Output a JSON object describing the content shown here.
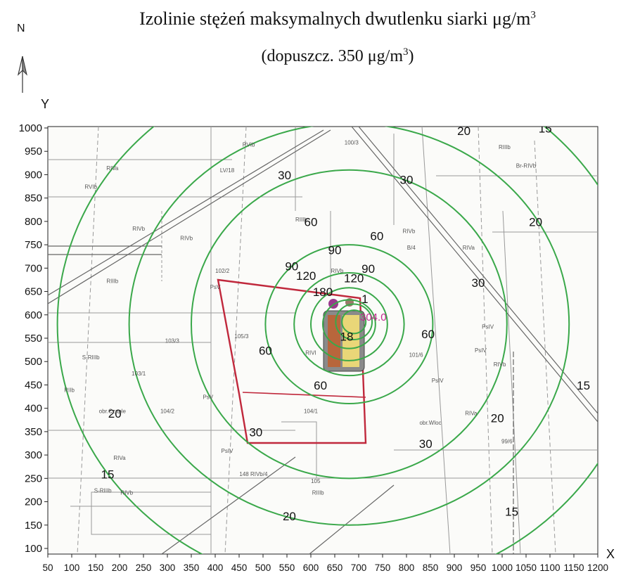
{
  "header": {
    "north": "N",
    "title_main": "Izolinie stężeń maksymalnych dwutlenku siarki μg/m",
    "title_sup": "3",
    "subtitle_main": "(dopuszcz. 350 μg/m",
    "subtitle_sup": "3",
    "subtitle_end": ")"
  },
  "axes": {
    "y_label": "Y",
    "x_label": "X",
    "y_ticks": [
      "1000",
      "950",
      "900",
      "850",
      "800",
      "750",
      "700",
      "650",
      "600",
      "550",
      "500",
      "450",
      "400",
      "350",
      "300",
      "250",
      "200",
      "150",
      "100"
    ],
    "x_ticks": [
      "50",
      "100",
      "150",
      "200",
      "250",
      "300",
      "350",
      "400",
      "450",
      "500",
      "550",
      "600",
      "650",
      "700",
      "750",
      "800",
      "850",
      "900",
      "950",
      "1000",
      "1050",
      "1100",
      "1150",
      "1200"
    ],
    "x_range": [
      50,
      1200
    ],
    "y_range": [
      100,
      1000
    ]
  },
  "map": {
    "center": [
      680,
      580
    ],
    "max_value": "304.0",
    "isolines": [
      {
        "value": "180"
      },
      {
        "value": "120"
      },
      {
        "value": "90"
      },
      {
        "value": "60"
      },
      {
        "value": "30"
      },
      {
        "value": "20"
      },
      {
        "value": "15"
      }
    ],
    "isoline_labels": [
      {
        "text": "180",
        "x": 625,
        "y": 640
      },
      {
        "text": "120",
        "x": 590,
        "y": 675
      },
      {
        "text": "120",
        "x": 690,
        "y": 670
      },
      {
        "text": "90",
        "x": 560,
        "y": 695
      },
      {
        "text": "90",
        "x": 650,
        "y": 730
      },
      {
        "text": "90",
        "x": 720,
        "y": 690
      },
      {
        "text": "60",
        "x": 600,
        "y": 790
      },
      {
        "text": "60",
        "x": 738,
        "y": 760
      },
      {
        "text": "60",
        "x": 845,
        "y": 550
      },
      {
        "text": "60",
        "x": 505,
        "y": 515
      },
      {
        "text": "60",
        "x": 620,
        "y": 440
      },
      {
        "text": "30",
        "x": 545,
        "y": 890
      },
      {
        "text": "30",
        "x": 800,
        "y": 880
      },
      {
        "text": "30",
        "x": 950,
        "y": 660
      },
      {
        "text": "30",
        "x": 840,
        "y": 315
      },
      {
        "text": "30",
        "x": 485,
        "y": 340
      },
      {
        "text": "20",
        "x": 920,
        "y": 985
      },
      {
        "text": "20",
        "x": 1070,
        "y": 790
      },
      {
        "text": "20",
        "x": 990,
        "y": 370
      },
      {
        "text": "20",
        "x": 190,
        "y": 380
      },
      {
        "text": "20",
        "x": 555,
        "y": 160
      },
      {
        "text": "15",
        "x": 1090,
        "y": 990
      },
      {
        "text": "15",
        "x": 1170,
        "y": 440
      },
      {
        "text": "15",
        "x": 175,
        "y": 250
      },
      {
        "text": "15",
        "x": 1020,
        "y": 170
      },
      {
        "text": "1",
        "x": 713,
        "y": 625
      },
      {
        "text": "18",
        "x": 675,
        "y": 545
      }
    ],
    "parcel_labels": [
      {
        "text": "RVIb",
        "x": 470,
        "y": 960
      },
      {
        "text": "100/3",
        "x": 685,
        "y": 965
      },
      {
        "text": "RIIIb",
        "x": 1005,
        "y": 955
      },
      {
        "text": "Br-RIVb",
        "x": 1050,
        "y": 915
      },
      {
        "text": "RIVa",
        "x": 185,
        "y": 910
      },
      {
        "text": "LV/18",
        "x": 425,
        "y": 905
      },
      {
        "text": "RVIb",
        "x": 140,
        "y": 870
      },
      {
        "text": "RIIIb",
        "x": 580,
        "y": 800
      },
      {
        "text": "RIVb",
        "x": 240,
        "y": 780
      },
      {
        "text": "RIVb",
        "x": 340,
        "y": 760
      },
      {
        "text": "RIVb",
        "x": 805,
        "y": 775
      },
      {
        "text": "B/4",
        "x": 810,
        "y": 740
      },
      {
        "text": "RIVa",
        "x": 930,
        "y": 740
      },
      {
        "text": "102/2",
        "x": 415,
        "y": 690
      },
      {
        "text": "PsV",
        "x": 400,
        "y": 655
      },
      {
        "text": "RIIIb",
        "x": 185,
        "y": 668
      },
      {
        "text": "RIVb",
        "x": 655,
        "y": 690
      },
      {
        "text": "103/3",
        "x": 310,
        "y": 540
      },
      {
        "text": "105/3",
        "x": 455,
        "y": 550
      },
      {
        "text": "RIVI",
        "x": 600,
        "y": 515
      },
      {
        "text": "101/6",
        "x": 820,
        "y": 510
      },
      {
        "text": "PsIV",
        "x": 970,
        "y": 570
      },
      {
        "text": "PsIV",
        "x": 955,
        "y": 520
      },
      {
        "text": "RIVb",
        "x": 995,
        "y": 490
      },
      {
        "text": "PsIV",
        "x": 865,
        "y": 455
      },
      {
        "text": "103/1",
        "x": 240,
        "y": 470
      },
      {
        "text": "S-RIIIb",
        "x": 140,
        "y": 505
      },
      {
        "text": "RIIb",
        "x": 95,
        "y": 435
      },
      {
        "text": "PsV",
        "x": 385,
        "y": 420
      },
      {
        "text": "obr.Czaple",
        "x": 185,
        "y": 390
      },
      {
        "text": "104/2",
        "x": 300,
        "y": 390
      },
      {
        "text": "104/1",
        "x": 600,
        "y": 390
      },
      {
        "text": "obr.Wloc",
        "x": 850,
        "y": 365
      },
      {
        "text": "RIVa",
        "x": 935,
        "y": 385
      },
      {
        "text": "99/6",
        "x": 1010,
        "y": 325
      },
      {
        "text": "RIVa",
        "x": 200,
        "y": 290
      },
      {
        "text": "PsIV",
        "x": 425,
        "y": 305
      },
      {
        "text": "148 RIVb/4",
        "x": 480,
        "y": 255
      },
      {
        "text": "105",
        "x": 610,
        "y": 240
      },
      {
        "text": "RIIIb",
        "x": 615,
        "y": 215
      },
      {
        "text": "RIVb",
        "x": 215,
        "y": 215
      },
      {
        "text": "S-RIIIb",
        "x": 165,
        "y": 220
      }
    ]
  }
}
